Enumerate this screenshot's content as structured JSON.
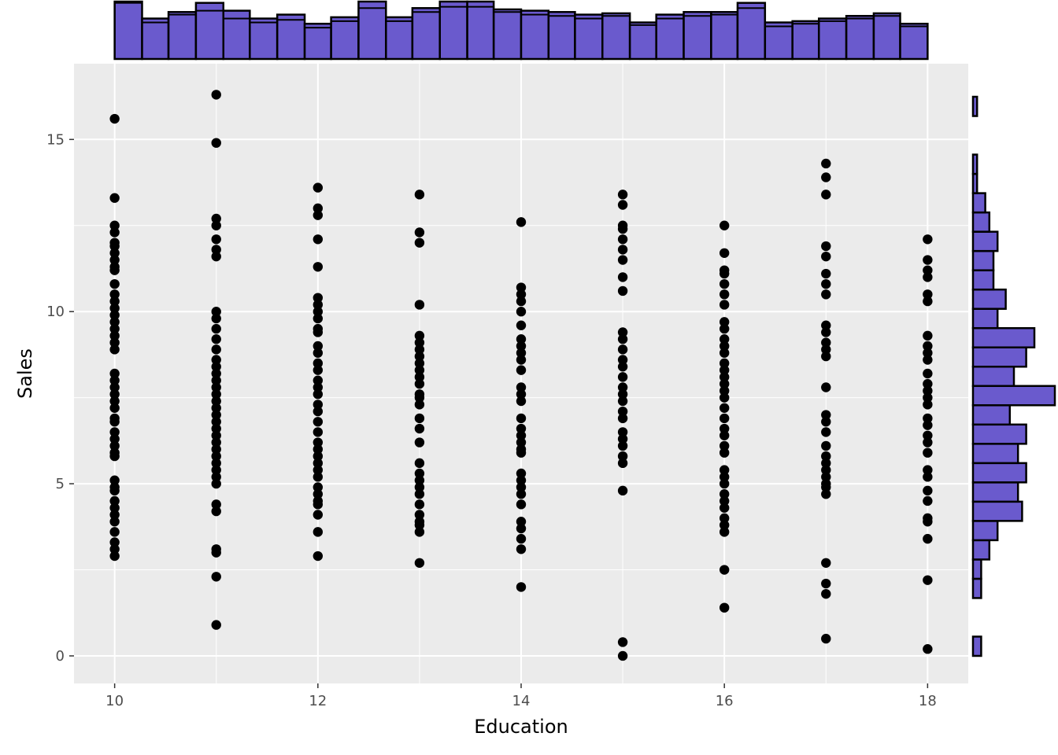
{
  "chart_data": {
    "type": "scatter",
    "title": "",
    "xlabel": "Education",
    "ylabel": "Sales",
    "xlim": [
      9.6,
      18.4
    ],
    "ylim": [
      -0.8,
      17.2
    ],
    "x_ticks": [
      10,
      12,
      14,
      16,
      18
    ],
    "y_ticks": [
      0,
      5,
      10,
      15
    ],
    "grid": true,
    "background": "#ebebeb",
    "point_color": "#000000",
    "histogram_fill": "#6a5acd",
    "histogram_stroke": "#000000",
    "points": {
      "10": [
        15.6,
        13.3,
        12.5,
        12.3,
        12.0,
        11.9,
        11.7,
        11.5,
        11.3,
        11.2,
        10.8,
        10.5,
        10.3,
        10.1,
        9.9,
        9.7,
        9.5,
        9.3,
        9.1,
        8.9,
        8.2,
        8.0,
        7.8,
        7.6,
        7.4,
        7.2,
        6.9,
        6.8,
        6.5,
        6.3,
        6.1,
        5.9,
        5.8,
        5.1,
        4.9,
        4.8,
        4.5,
        4.3,
        4.1,
        3.9,
        3.6,
        3.3,
        3.1,
        2.9
      ],
      "11": [
        16.3,
        14.9,
        12.7,
        12.5,
        12.1,
        11.8,
        11.6,
        10.0,
        9.8,
        9.5,
        9.2,
        8.9,
        8.6,
        8.4,
        8.2,
        8.0,
        7.8,
        7.6,
        7.4,
        7.2,
        7.0,
        6.8,
        6.6,
        6.4,
        6.2,
        6.0,
        5.8,
        5.6,
        5.4,
        5.2,
        5.0,
        4.4,
        4.2,
        3.1,
        3.0,
        2.3,
        0.9
      ],
      "12": [
        13.6,
        13.0,
        12.8,
        12.1,
        11.3,
        10.4,
        10.2,
        10.0,
        9.8,
        9.5,
        9.4,
        9.0,
        8.8,
        8.5,
        8.3,
        8.0,
        7.8,
        7.6,
        7.3,
        7.1,
        6.8,
        6.5,
        6.2,
        6.0,
        5.8,
        5.6,
        5.4,
        5.2,
        4.9,
        4.7,
        4.5,
        4.4,
        4.1,
        3.6,
        2.9
      ],
      "13": [
        13.4,
        12.3,
        12.0,
        10.2,
        9.3,
        9.1,
        8.9,
        8.7,
        8.5,
        8.3,
        8.1,
        7.9,
        7.6,
        7.5,
        7.3,
        6.9,
        6.6,
        6.2,
        5.6,
        5.3,
        5.1,
        4.9,
        4.7,
        4.4,
        4.1,
        3.9,
        3.8,
        3.6,
        2.7
      ],
      "14": [
        12.6,
        10.7,
        10.5,
        10.3,
        10.0,
        9.6,
        9.2,
        9.0,
        8.8,
        8.6,
        8.3,
        7.8,
        7.6,
        7.4,
        6.9,
        6.6,
        6.4,
        6.2,
        6.0,
        5.9,
        5.3,
        5.1,
        4.9,
        4.7,
        4.4,
        3.9,
        3.7,
        3.4,
        3.1,
        2.0
      ],
      "15": [
        13.4,
        13.1,
        12.5,
        12.4,
        12.1,
        11.8,
        11.5,
        11.0,
        10.6,
        9.4,
        9.2,
        8.9,
        8.6,
        8.4,
        8.1,
        7.8,
        7.6,
        7.4,
        7.1,
        6.9,
        6.5,
        6.3,
        6.1,
        5.8,
        5.6,
        4.8,
        0.4,
        0.0
      ],
      "16": [
        12.5,
        11.7,
        11.2,
        11.1,
        10.8,
        10.5,
        10.2,
        9.7,
        9.5,
        9.2,
        9.0,
        8.8,
        8.5,
        8.3,
        8.1,
        7.9,
        7.7,
        7.5,
        7.2,
        6.9,
        6.6,
        6.4,
        6.1,
        5.9,
        5.4,
        5.2,
        5.0,
        4.7,
        4.5,
        4.3,
        4.0,
        3.8,
        3.6,
        2.5,
        1.4
      ],
      "17": [
        14.3,
        13.9,
        13.4,
        11.9,
        11.6,
        11.1,
        10.8,
        10.5,
        9.6,
        9.4,
        9.1,
        8.9,
        8.7,
        7.8,
        7.0,
        6.8,
        6.5,
        6.1,
        5.8,
        5.6,
        5.4,
        5.2,
        5.0,
        4.9,
        4.7,
        2.7,
        2.1,
        1.8,
        0.5
      ],
      "18": [
        12.1,
        11.5,
        11.2,
        11.0,
        10.5,
        10.3,
        9.3,
        9.0,
        8.8,
        8.6,
        8.2,
        7.9,
        7.7,
        7.5,
        7.3,
        6.9,
        6.7,
        6.4,
        6.2,
        5.9,
        5.4,
        5.2,
        4.8,
        4.5,
        4.0,
        3.9,
        3.4,
        2.2,
        0.2
      ]
    },
    "top_histogram": {
      "bin_edges": [
        10,
        10.27,
        10.53,
        10.8,
        11.07,
        11.33,
        11.6,
        11.87,
        12.13,
        12.4,
        12.67,
        12.93,
        13.2,
        13.47,
        13.73,
        14.0,
        14.27,
        14.53,
        14.8,
        15.07,
        15.33,
        15.6,
        15.87,
        16.13,
        16.4,
        16.67,
        16.93,
        17.2,
        17.47,
        17.73,
        18.0
      ],
      "counts": [
        44,
        31,
        36,
        43,
        37,
        31,
        34,
        27,
        32,
        44,
        32,
        39,
        44,
        44,
        38,
        37,
        36,
        34,
        35,
        28,
        34,
        36,
        36,
        43,
        28,
        29,
        31,
        33,
        35,
        27
      ],
      "overlay_counts": [
        43,
        28,
        34,
        37,
        31,
        28,
        30,
        24,
        29,
        39,
        29,
        36,
        40,
        40,
        36,
        34,
        33,
        31,
        33,
        26,
        31,
        33,
        34,
        39,
        25,
        27,
        29,
        31,
        33,
        25
      ]
    },
    "right_histogram": {
      "bin_edges": [
        0.0,
        0.56,
        1.12,
        1.68,
        2.24,
        2.8,
        3.36,
        3.92,
        4.48,
        5.04,
        5.6,
        6.16,
        6.72,
        7.28,
        7.84,
        8.4,
        8.96,
        9.52,
        10.08,
        10.64,
        11.2,
        11.76,
        12.32,
        12.88,
        13.44,
        14.0,
        14.56,
        15.12,
        15.68,
        16.24
      ],
      "counts": [
        2,
        0,
        0,
        2,
        2,
        4,
        6,
        12,
        11,
        13,
        11,
        13,
        9,
        20,
        10,
        13,
        15,
        6,
        8,
        5,
        5,
        6,
        4,
        3,
        1,
        1,
        0,
        0,
        1,
        1
      ]
    }
  }
}
